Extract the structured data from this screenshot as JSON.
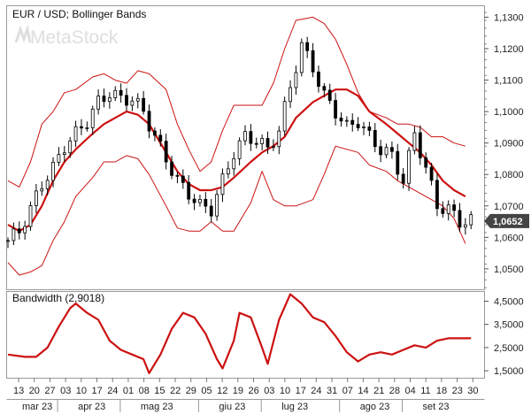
{
  "watermark": "MetaStock",
  "chart_data": [
    {
      "type": "candlestick",
      "title": "EUR / USD; Bollinger Bands",
      "y_ticks": [
        "1,0500",
        "1,0600",
        "1,0700",
        "1,0800",
        "1,0900",
        "1,1000",
        "1,1100",
        "1,1200",
        "1,1300"
      ],
      "ylim": [
        1.0435,
        1.1335
      ],
      "last_value_label": "1,0652",
      "last_value": 1.0652,
      "grid": false,
      "series": [
        {
          "name": "Bollinger middle (SMA)",
          "color": "#cc1111",
          "x": [
            0,
            2,
            4,
            6,
            8,
            10,
            12,
            15,
            17,
            19,
            21,
            23,
            25,
            28,
            30,
            32,
            34,
            36,
            38,
            40,
            43,
            45,
            47,
            49,
            51,
            54,
            56,
            58,
            60,
            62,
            64,
            67,
            69,
            71,
            73,
            75,
            77,
            79,
            81
          ],
          "values": [
            1.064,
            1.062,
            1.064,
            1.07,
            1.078,
            1.084,
            1.088,
            1.093,
            1.096,
            1.098,
            1.1,
            1.099,
            1.096,
            1.087,
            1.081,
            1.077,
            1.075,
            1.075,
            1.076,
            1.079,
            1.084,
            1.087,
            1.089,
            1.092,
            1.098,
            1.103,
            1.105,
            1.107,
            1.107,
            1.105,
            1.1,
            1.096,
            1.093,
            1.09,
            1.087,
            1.083,
            1.078,
            1.075,
            1.073
          ]
        },
        {
          "name": "Bollinger upper band",
          "color": "#cc1111",
          "x": [
            0,
            2,
            4,
            6,
            8,
            10,
            12,
            15,
            17,
            19,
            21,
            23,
            25,
            28,
            30,
            32,
            34,
            36,
            38,
            40,
            43,
            45,
            47,
            49,
            51,
            54,
            56,
            58,
            60,
            62,
            64,
            67,
            69,
            71,
            73,
            75,
            77,
            79,
            81
          ],
          "values": [
            1.078,
            1.076,
            1.084,
            1.096,
            1.1,
            1.106,
            1.107,
            1.111,
            1.112,
            1.11,
            1.109,
            1.113,
            1.112,
            1.107,
            1.096,
            1.088,
            1.081,
            1.084,
            1.094,
            1.102,
            1.102,
            1.102,
            1.109,
            1.12,
            1.129,
            1.13,
            1.128,
            1.123,
            1.115,
            1.106,
            1.1,
            1.098,
            1.096,
            1.096,
            1.095,
            1.092,
            1.092,
            1.09,
            1.089
          ]
        },
        {
          "name": "Bollinger lower band",
          "color": "#cc1111",
          "x": [
            0,
            2,
            4,
            6,
            8,
            10,
            12,
            15,
            17,
            19,
            21,
            23,
            25,
            28,
            30,
            32,
            34,
            36,
            38,
            40,
            43,
            45,
            47,
            49,
            51,
            54,
            56,
            58,
            60,
            62,
            64,
            67,
            69,
            71,
            73,
            75,
            77,
            79,
            81
          ],
          "values": [
            1.052,
            1.048,
            1.049,
            1.051,
            1.059,
            1.065,
            1.073,
            1.079,
            1.084,
            1.084,
            1.086,
            1.085,
            1.08,
            1.07,
            1.063,
            1.062,
            1.062,
            1.065,
            1.062,
            1.062,
            1.071,
            1.081,
            1.072,
            1.07,
            1.07,
            1.072,
            1.08,
            1.089,
            1.088,
            1.087,
            1.083,
            1.081,
            1.078,
            1.076,
            1.074,
            1.072,
            1.07,
            1.066,
            1.058
          ]
        },
        {
          "name": "EUR / USD close",
          "color": "#000000",
          "x": [
            0,
            2,
            4,
            6,
            8,
            10,
            12,
            14,
            16,
            18,
            20,
            22,
            24,
            26,
            28,
            30,
            32,
            34,
            36,
            38,
            40,
            42,
            44,
            46,
            48,
            50,
            52,
            54,
            56,
            58,
            60,
            62,
            64,
            66,
            68,
            70,
            72,
            74,
            76,
            78,
            80,
            82
          ],
          "values": [
            1.059,
            1.062,
            1.069,
            1.077,
            1.082,
            1.089,
            1.093,
            1.097,
            1.103,
            1.106,
            1.104,
            1.104,
            1.1,
            1.092,
            1.085,
            1.078,
            1.074,
            1.07,
            1.069,
            1.078,
            1.087,
            1.092,
            1.091,
            1.088,
            1.094,
            1.108,
            1.121,
            1.114,
            1.105,
            1.1,
            1.095,
            1.097,
            1.092,
            1.088,
            1.086,
            1.078,
            1.093,
            1.082,
            1.07,
            1.069,
            1.065,
            1.0652
          ]
        }
      ]
    },
    {
      "type": "line",
      "title": "Bandwidth (2,9018)",
      "y_ticks": [
        "1,5000",
        "2,5000",
        "3,5000",
        "4,5000"
      ],
      "ylim": [
        1.2,
        4.9
      ],
      "grid": false,
      "series": [
        {
          "name": "Bandwidth",
          "color": "#cc1111",
          "x": [
            0,
            3,
            5,
            7,
            9,
            11,
            12,
            14,
            16,
            18,
            20,
            22,
            24,
            25,
            27,
            29,
            31,
            33,
            35,
            37,
            38,
            40,
            41,
            43,
            45,
            46,
            48,
            50,
            52,
            54,
            56,
            58,
            60,
            62,
            64,
            66,
            68,
            70,
            72,
            74,
            76,
            78,
            80,
            82
          ],
          "values": [
            2.2,
            2.1,
            2.1,
            2.5,
            3.4,
            4.2,
            4.4,
            4.0,
            3.7,
            2.8,
            2.4,
            2.2,
            2.0,
            1.4,
            2.2,
            3.3,
            4.0,
            3.8,
            3.1,
            2.0,
            1.6,
            2.8,
            4.0,
            3.8,
            2.5,
            1.8,
            3.7,
            4.8,
            4.4,
            3.8,
            3.6,
            3.0,
            2.3,
            1.9,
            2.2,
            2.3,
            2.2,
            2.4,
            2.6,
            2.5,
            2.8,
            2.9,
            2.9,
            2.9
          ]
        }
      ]
    }
  ],
  "x_axis": {
    "day_labels": [
      "13",
      "20",
      "27",
      "03",
      "10",
      "17",
      "24",
      "01",
      "08",
      "15",
      "22",
      "29",
      "05",
      "12",
      "19",
      "26",
      "03",
      "10",
      "17",
      "24",
      "31",
      "07",
      "14",
      "21",
      "28",
      "04",
      "11",
      "18",
      "23",
      "30"
    ],
    "month_labels": [
      "mar 23",
      "apr 23",
      "mag 23",
      "giu 23",
      "lug 23",
      "ago 23",
      "set 23"
    ]
  }
}
